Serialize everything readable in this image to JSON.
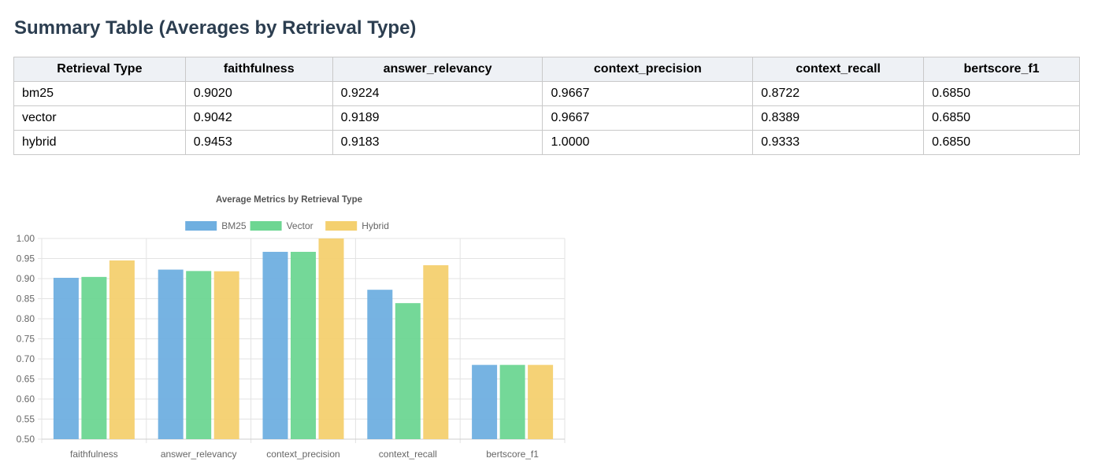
{
  "page": {
    "title": "Summary Table (Averages by Retrieval Type)"
  },
  "table": {
    "headers": [
      "Retrieval Type",
      "faithfulness",
      "answer_relevancy",
      "context_precision",
      "context_recall",
      "bertscore_f1"
    ],
    "rows": [
      [
        "bm25",
        "0.9020",
        "0.9224",
        "0.9667",
        "0.8722",
        "0.6850"
      ],
      [
        "vector",
        "0.9042",
        "0.9189",
        "0.9667",
        "0.8389",
        "0.6850"
      ],
      [
        "hybrid",
        "0.9453",
        "0.9183",
        "1.0000",
        "0.9333",
        "0.6850"
      ]
    ]
  },
  "chart_data": {
    "type": "bar",
    "title": "Average Metrics by Retrieval Type",
    "xlabel": "",
    "ylabel": "",
    "categories": [
      "faithfulness",
      "answer_relevancy",
      "context_precision",
      "context_recall",
      "bertscore_f1"
    ],
    "series": [
      {
        "name": "BM25",
        "color": "#6fafe0",
        "values": [
          0.902,
          0.9224,
          0.9667,
          0.8722,
          0.685
        ]
      },
      {
        "name": "Vector",
        "color": "#6dd692",
        "values": [
          0.9042,
          0.9189,
          0.9667,
          0.8389,
          0.685
        ]
      },
      {
        "name": "Hybrid",
        "color": "#f4d06f",
        "values": [
          0.9453,
          0.9183,
          1.0,
          0.9333,
          0.685
        ]
      }
    ],
    "ylim": [
      0.5,
      1.0
    ],
    "yticks": [
      "1.00",
      "0.95",
      "0.90",
      "0.85",
      "0.80",
      "0.75",
      "0.70",
      "0.65",
      "0.60",
      "0.55",
      "0.50"
    ],
    "grid": true,
    "legend": "top-center"
  }
}
